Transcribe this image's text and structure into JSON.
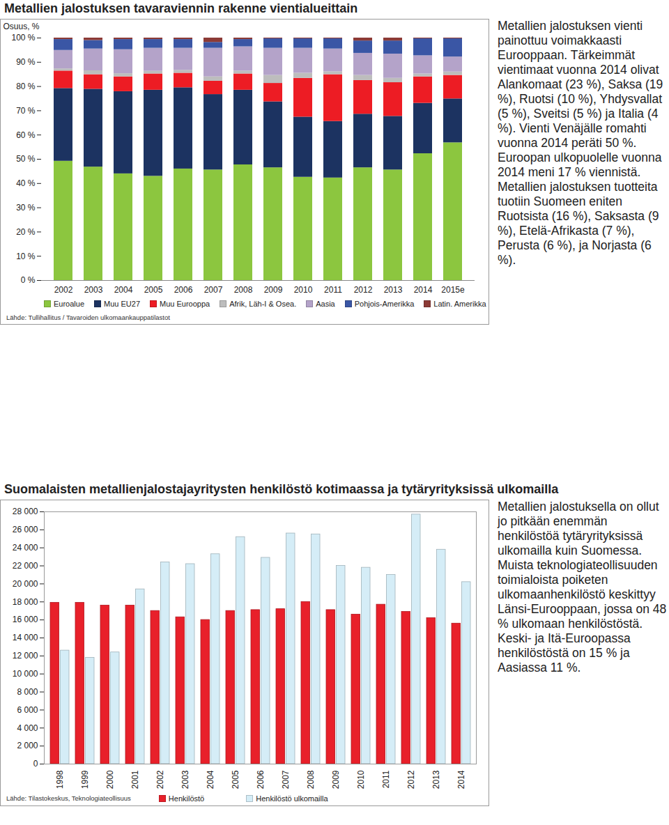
{
  "chart_data": [
    {
      "type": "bar",
      "stacked": true,
      "title": "Metallien jalostuksen tavaraviennin rakenne vientialueittain",
      "ylabel": "Osuus, %",
      "categories": [
        "2002",
        "2003",
        "2004",
        "2005",
        "2006",
        "2007",
        "2008",
        "2009",
        "2010",
        "2011",
        "2012",
        "2013",
        "2014",
        "2015e"
      ],
      "series": [
        {
          "name": "Euroalue",
          "color": "#8cc63f",
          "values": [
            49.2,
            46.8,
            44,
            43,
            46,
            45.6,
            47.7,
            46.5,
            42.6,
            42.3,
            46.5,
            45.6,
            52.3,
            56.8
          ]
        },
        {
          "name": "Muu EU27",
          "color": "#1c3361",
          "values": [
            30,
            32.1,
            33.9,
            35.5,
            33.5,
            31.1,
            30.8,
            27.2,
            24.8,
            23.3,
            22.1,
            22.1,
            20.8,
            18.1
          ]
        },
        {
          "name": "Muu Eurooppa",
          "color": "#ed1c24",
          "values": [
            7.2,
            6,
            6.1,
            6.7,
            6,
            5.5,
            6.7,
            7.6,
            16,
            19.3,
            13.9,
            13.9,
            10.9,
            9.7
          ]
        },
        {
          "name": "Afrik, Läh-I & Osea.",
          "color": "#bdbdbd",
          "values": [
            0.9,
            1.6,
            1.3,
            1.1,
            1.2,
            1.8,
            1.2,
            3.3,
            2.1,
            1.2,
            2.1,
            1.8,
            1.2,
            1.4
          ]
        },
        {
          "name": "Aasia",
          "color": "#b4a3c9",
          "values": [
            7.6,
            9,
            9.9,
            9.5,
            9.1,
            11.8,
            10,
            11.2,
            10.3,
            9.4,
            9.1,
            10,
            7.5,
            6.2
          ]
        },
        {
          "name": "Pohjois-Amerikka",
          "color": "#3a56a5",
          "values": [
            4.5,
            3.5,
            4.2,
            3.6,
            3.6,
            2.4,
            3,
            3.9,
            3.9,
            4.2,
            5.1,
            5.4,
            7,
            7.5
          ]
        },
        {
          "name": "Latin. Amerikka",
          "color": "#8c3a36",
          "values": [
            0.6,
            1,
            0.6,
            0.6,
            0.6,
            1.8,
            0.6,
            0.3,
            0.3,
            0.3,
            1.2,
            1.2,
            0.3,
            0.3
          ]
        }
      ],
      "ylim": [
        0,
        100
      ],
      "yticks": [
        {
          "value": 0,
          "label": "0 %"
        },
        {
          "value": 10,
          "label": "10 %"
        },
        {
          "value": 20,
          "label": "20 %"
        },
        {
          "value": 30,
          "label": "30 %"
        },
        {
          "value": 40,
          "label": "40 %"
        },
        {
          "value": 50,
          "label": "50 %"
        },
        {
          "value": 60,
          "label": "60 %"
        },
        {
          "value": 70,
          "label": "70 %"
        },
        {
          "value": 80,
          "label": "80 %"
        },
        {
          "value": 90,
          "label": "90 %"
        },
        {
          "value": 100,
          "label": "100 %"
        }
      ],
      "grid": false,
      "legend": "bottom",
      "source": "Lähde: Tullihallitus / Tavaroiden ulkomaankauppatilastot",
      "annotations": [
        "Metallien jalostuksen vienti painottuu voimakkaasti Eurooppaan. Tärkeimmät vientimaat vuonna 2014 olivat Alankomaat (23 %), Saksa (19 %), Ruotsi (10 %), Yhdysvallat (5 %), Sveitsi (5 %) ja Italia (4 %). Vienti Venäjälle romahti vuonna 2014 peräti 50 %. Euroopan ulkopuolelle vuonna 2014 meni 17 % viennistä. Metallien jalostuksen tuotteita tuotiin Suomeen eniten Ruotsista (16 %), Saksasta (9 %), Etelä-Afrikasta (7 %), Perusta (6 %), ja Norjasta (6 %)."
      ]
    },
    {
      "type": "bar",
      "title": "Suomalaisten metallienjalostajayritysten henkilöstö kotimaassa ja tytäryrityksissä ulkomailla",
      "categories": [
        "1998",
        "1999",
        "2000",
        "2001",
        "2002",
        "2003",
        "2004",
        "2005",
        "2006",
        "2007",
        "2008",
        "2009",
        "2010",
        "2011",
        "2012",
        "2013",
        "2014"
      ],
      "series": [
        {
          "name": "Henkilöstö",
          "color": "#e8202a",
          "values": [
            17900,
            17900,
            17600,
            17600,
            17000,
            16300,
            16000,
            17000,
            17100,
            17200,
            18000,
            17100,
            16600,
            17700,
            16900,
            16200,
            15600
          ]
        },
        {
          "name": "Henkilöstö ulkomailla",
          "color": "#d5edf7",
          "values": [
            12600,
            11800,
            12400,
            19400,
            22400,
            22200,
            23300,
            25200,
            22900,
            25600,
            25500,
            22000,
            21800,
            21000,
            27700,
            23800,
            20200
          ]
        }
      ],
      "ylim": [
        0,
        28000
      ],
      "yticks": [
        0,
        {
          "value": 2000,
          "label": "2 000"
        },
        {
          "value": 4000,
          "label": "4 000"
        },
        {
          "value": 6000,
          "label": "6 000"
        },
        {
          "value": 8000,
          "label": "8 000"
        },
        {
          "value": 10000,
          "label": "10 000"
        },
        {
          "value": 12000,
          "label": "12 000"
        },
        {
          "value": 14000,
          "label": "14 000"
        },
        {
          "value": 16000,
          "label": "16 000"
        },
        {
          "value": 18000,
          "label": "18 000"
        },
        {
          "value": 20000,
          "label": "20 000"
        },
        {
          "value": 22000,
          "label": "22 000"
        },
        {
          "value": 24000,
          "label": "24 000"
        },
        {
          "value": 26000,
          "label": "26 000"
        },
        {
          "value": 28000,
          "label": "28 000"
        }
      ],
      "grid": false,
      "legend": "bottom",
      "source": "Lähde: Tilastokeskus, Teknologiateollisuus",
      "annotations": [
        "Metallien jalostuksella on ollut jo pitkään enemmän henkilöstöä tytäryrityksissä ulkomailla kuin Suomessa. Muista teknologiateollisuuden toimialoista poiketen ulkomaanhenkilöstö keskittyy Länsi-Eurooppaan, jossa on 48 % ulkomaan henkilöstöstä. Keski- ja Itä-Euroopassa henkilöstöstä on 15 % ja Aasiassa 11 %."
      ]
    }
  ]
}
